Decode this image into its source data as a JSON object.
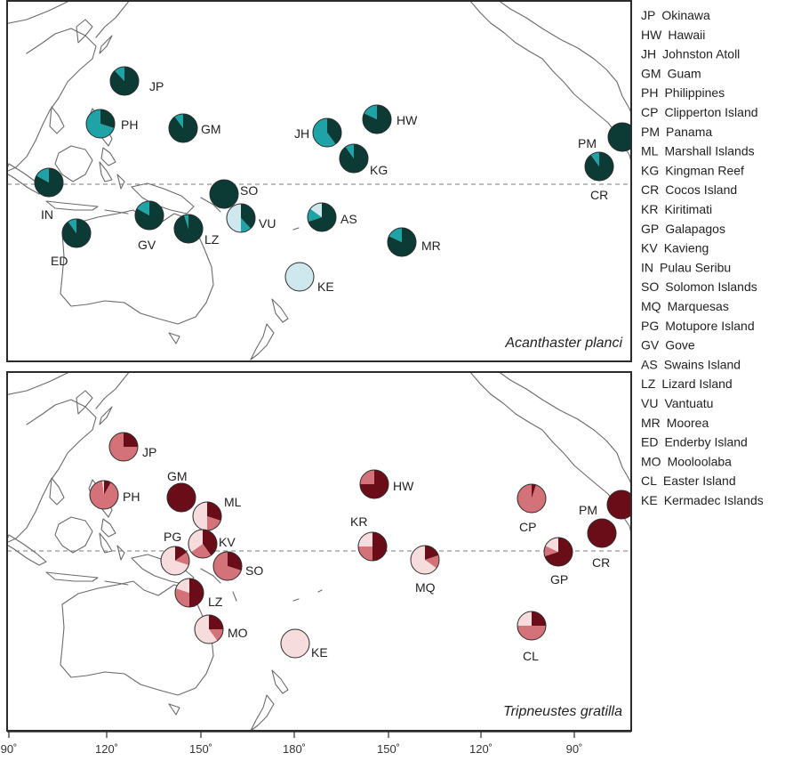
{
  "panels": [
    {
      "id": "top",
      "species": "Acanthaster planci",
      "colors": [
        "#0b3b34",
        "#1fa3a6",
        "#cfe8ee"
      ],
      "sites": [
        {
          "code": "JP",
          "fractions": [
            0.88,
            0.12,
            0
          ]
        },
        {
          "code": "PH",
          "fractions": [
            0.3,
            0.7,
            0
          ]
        },
        {
          "code": "GM",
          "fractions": [
            0.9,
            0.1,
            0
          ]
        },
        {
          "code": "JH",
          "fractions": [
            0.4,
            0.6,
            0
          ]
        },
        {
          "code": "HW",
          "fractions": [
            0.82,
            0.18,
            0
          ]
        },
        {
          "code": "KG",
          "fractions": [
            0.9,
            0.1,
            0
          ]
        },
        {
          "code": "PM",
          "fractions": [
            1.0,
            0,
            0
          ]
        },
        {
          "code": "CR",
          "fractions": [
            0.9,
            0.1,
            0
          ]
        },
        {
          "code": "IN",
          "fractions": [
            0.83,
            0.17,
            0
          ]
        },
        {
          "code": "SO",
          "fractions": [
            1.0,
            0,
            0
          ]
        },
        {
          "code": "GV",
          "fractions": [
            0.83,
            0.17,
            0
          ]
        },
        {
          "code": "LZ",
          "fractions": [
            0.95,
            0.05,
            0
          ]
        },
        {
          "code": "VU",
          "fractions": [
            0.38,
            0.12,
            0.5
          ]
        },
        {
          "code": "AS",
          "fractions": [
            0.7,
            0.15,
            0.15
          ]
        },
        {
          "code": "ED",
          "fractions": [
            0.9,
            0.1,
            0
          ]
        },
        {
          "code": "MR",
          "fractions": [
            0.82,
            0.18,
            0
          ]
        },
        {
          "code": "KE",
          "fractions": [
            0,
            0,
            1.0
          ]
        }
      ]
    },
    {
      "id": "bottom",
      "species": "Tripneustes gratilla",
      "colors": [
        "#6b0d18",
        "#d4727a",
        "#f7dcde"
      ],
      "sites": [
        {
          "code": "JP",
          "fractions": [
            0.25,
            0.75,
            0
          ]
        },
        {
          "code": "PH",
          "fractions": [
            0.08,
            0.9,
            0.02
          ]
        },
        {
          "code": "GM",
          "fractions": [
            1.0,
            0,
            0
          ]
        },
        {
          "code": "ML",
          "fractions": [
            0.3,
            0.2,
            0.5
          ]
        },
        {
          "code": "PG",
          "fractions": [
            0.15,
            0.15,
            0.7
          ]
        },
        {
          "code": "KV",
          "fractions": [
            0.4,
            0.25,
            0.35
          ]
        },
        {
          "code": "SO",
          "fractions": [
            0.3,
            0.7,
            0
          ]
        },
        {
          "code": "LZ",
          "fractions": [
            0.5,
            0.3,
            0.2
          ]
        },
        {
          "code": "MO",
          "fractions": [
            0.25,
            0.15,
            0.6
          ]
        },
        {
          "code": "KE",
          "fractions": [
            0,
            0,
            1.0
          ]
        },
        {
          "code": "HW",
          "fractions": [
            0.75,
            0.25,
            0
          ]
        },
        {
          "code": "KR",
          "fractions": [
            0.5,
            0.25,
            0.25
          ]
        },
        {
          "code": "MQ",
          "fractions": [
            0.2,
            0.15,
            0.65
          ]
        },
        {
          "code": "CP",
          "fractions": [
            0.05,
            0.95,
            0
          ]
        },
        {
          "code": "CL",
          "fractions": [
            0.25,
            0.5,
            0.25
          ]
        },
        {
          "code": "GP",
          "fractions": [
            0.7,
            0.12,
            0.18
          ]
        },
        {
          "code": "PM",
          "fractions": [
            1.0,
            0,
            0
          ]
        },
        {
          "code": "CR",
          "fractions": [
            1.0,
            0,
            0
          ]
        }
      ]
    }
  ],
  "legend": [
    {
      "code": "JP",
      "name": "Okinawa"
    },
    {
      "code": "HW",
      "name": "Hawaii"
    },
    {
      "code": "JH",
      "name": "Johnston Atoll"
    },
    {
      "code": "GM",
      "name": "Guam"
    },
    {
      "code": "PH",
      "name": "Philippines"
    },
    {
      "code": "CP",
      "name": "Clipperton Island"
    },
    {
      "code": "PM",
      "name": "Panama"
    },
    {
      "code": "ML",
      "name": "Marshall Islands"
    },
    {
      "code": "KG",
      "name": "Kingman Reef"
    },
    {
      "code": "CR",
      "name": "Cocos Island"
    },
    {
      "code": "KR",
      "name": "Kiritimati"
    },
    {
      "code": "GP",
      "name": "Galapagos"
    },
    {
      "code": "KV",
      "name": "Kavieng"
    },
    {
      "code": "IN",
      "name": "Pulau Seribu"
    },
    {
      "code": "SO",
      "name": "Solomon Islands"
    },
    {
      "code": "MQ",
      "name": "Marquesas"
    },
    {
      "code": "PG",
      "name": "Motupore Island"
    },
    {
      "code": "GV",
      "name": "Gove"
    },
    {
      "code": "AS",
      "name": "Swains Island"
    },
    {
      "code": "LZ",
      "name": "Lizard Island"
    },
    {
      "code": "VU",
      "name": "Vantuatu"
    },
    {
      "code": "MR",
      "name": "Moorea"
    },
    {
      "code": "ED",
      "name": "Enderby Island"
    },
    {
      "code": "MO",
      "name": "Mooloolaba"
    },
    {
      "code": "CL",
      "name": "Easter Island"
    },
    {
      "code": "KE",
      "name": "Kermadec Islands"
    }
  ],
  "longitude_ticks": [
    "90˚",
    "120˚",
    "150˚",
    "180˚",
    "150˚",
    "120˚",
    "90˚"
  ]
}
